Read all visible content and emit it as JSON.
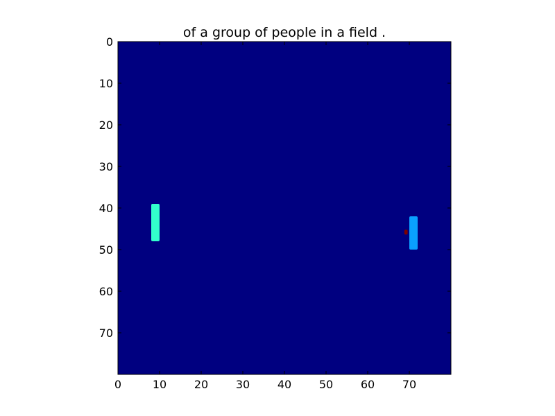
{
  "chart_data": {
    "type": "heatmap",
    "title": "of a group of people in a field .",
    "xlabel": "",
    "ylabel": "",
    "colormap": "jet",
    "background_color": "#000080",
    "grid_size": [
      80,
      80
    ],
    "xlim": [
      0,
      80
    ],
    "ylim": [
      80,
      0
    ],
    "xticks": [
      0,
      10,
      20,
      30,
      40,
      50,
      60,
      70
    ],
    "yticks": [
      0,
      10,
      20,
      30,
      40,
      50,
      60,
      70
    ],
    "grid": false,
    "highlights": [
      {
        "x0": 8,
        "x1": 10,
        "y0": 39,
        "y1": 48,
        "color": "#33ffcc"
      },
      {
        "x0": 70,
        "x1": 72,
        "y0": 42,
        "y1": 50,
        "color": "#0aa0ff"
      },
      {
        "x0": 68.8,
        "x1": 69.6,
        "y0": 45.2,
        "y1": 46.4,
        "color": "#7a0000"
      }
    ]
  }
}
